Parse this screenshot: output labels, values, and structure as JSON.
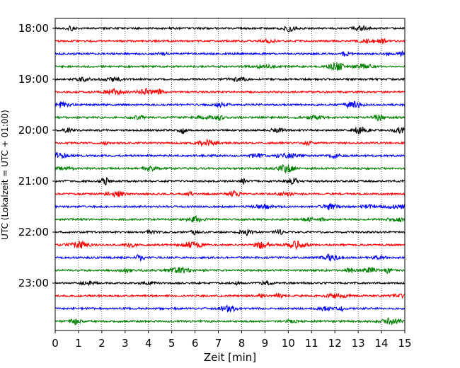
{
  "chart_data": {
    "type": "line",
    "title": "",
    "xlabel": "Zeit  [min]",
    "ylabel": "UTC (Lokalzeit = UTC + 01:00)",
    "xlim": [
      0,
      15
    ],
    "x_ticks": [
      "0",
      "1",
      "2",
      "3",
      "4",
      "5",
      "6",
      "7",
      "8",
      "9",
      "10",
      "11",
      "12",
      "13",
      "14",
      "15"
    ],
    "y_tick_labels": [
      "18:00",
      "19:00",
      "20:00",
      "21:00",
      "22:00",
      "23:00"
    ],
    "row_interval_minutes": 15,
    "row_start": "18:00",
    "row_count": 24,
    "row_colors": [
      "#000000",
      "#ff0000",
      "#0000ff",
      "#008000"
    ],
    "grid_x": true,
    "grid_style": "dotted"
  }
}
